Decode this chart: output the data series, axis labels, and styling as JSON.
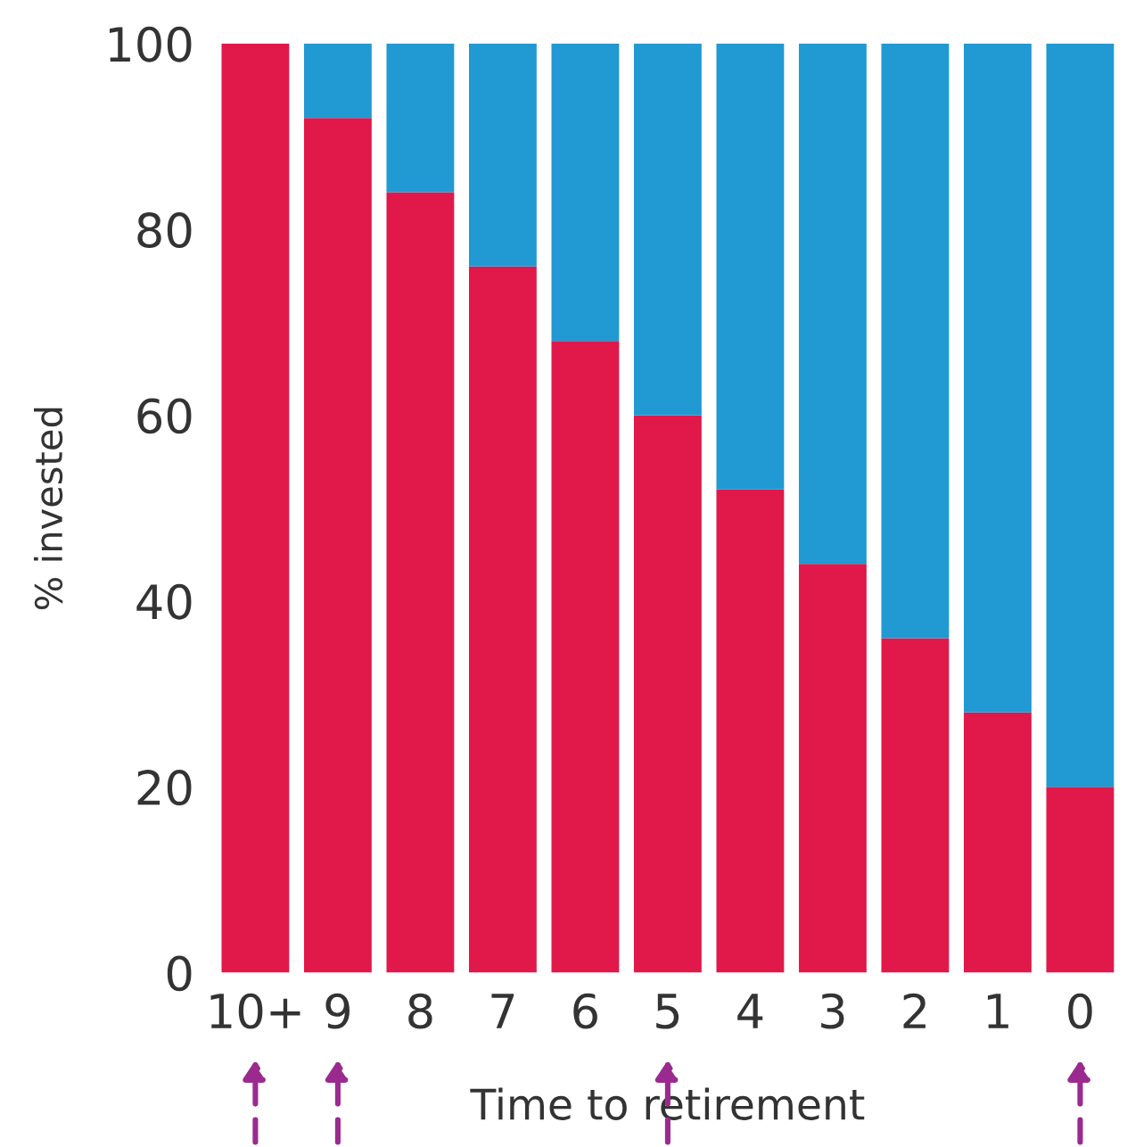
{
  "chart_data": {
    "type": "bar",
    "stacked": true,
    "xlabel": "Time to retirement",
    "ylabel": "% invested",
    "categories": [
      "10+",
      "9",
      "8",
      "7",
      "6",
      "5",
      "4",
      "3",
      "2",
      "1",
      "0"
    ],
    "series": [
      {
        "color": "#e0194a",
        "values": [
          100,
          92,
          84,
          76,
          68,
          60,
          52,
          44,
          36,
          28,
          20
        ]
      },
      {
        "color": "#2199d2",
        "values": [
          0,
          8,
          16,
          24,
          32,
          40,
          48,
          56,
          64,
          72,
          80
        ]
      }
    ],
    "ylim": [
      0,
      100
    ],
    "yticks": [
      0,
      20,
      40,
      60,
      80,
      100
    ],
    "grid": false,
    "legend": false
  }
}
